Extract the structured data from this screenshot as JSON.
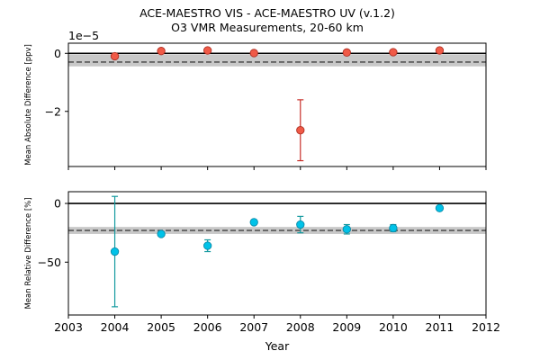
{
  "title_line1": "ACE-MAESTRO VIS - ACE-MAESTRO UV (v.1.2)",
  "title_line2": "O3 VMR Measurements, 20-60 km",
  "chart_data": [
    {
      "type": "scatter",
      "panel": "top",
      "ylabel": "Mean Absolute Difference [ppv]",
      "offset_label": "1e−5",
      "units_scale": 1e-05,
      "xlim": [
        2003,
        2012
      ],
      "ylim": [
        -3.9,
        0.35
      ],
      "yticks": [
        0,
        -2
      ],
      "ytick_labels": [
        "0",
        "−2"
      ],
      "x": [
        2004,
        2005,
        2006,
        2007,
        2008,
        2009,
        2010,
        2011
      ],
      "y": [
        -0.1,
        0.08,
        0.1,
        0.01,
        -2.65,
        0.03,
        0.04,
        0.1
      ],
      "err": [
        0,
        0,
        0,
        0,
        1.05,
        0,
        0,
        0
      ],
      "mean": -0.3,
      "band": [
        -0.45,
        -0.05
      ],
      "zero_line": 0,
      "marker_color": "#f05a47",
      "marker_edge": "#b03024",
      "errbar_color": "#c8302a",
      "mean_line_color": "#555555",
      "band_color": "#c8c8c8"
    },
    {
      "type": "scatter",
      "panel": "bottom",
      "ylabel": "Mean Relative Difference [%]",
      "xlabel": "Year",
      "xlim": [
        2003,
        2012
      ],
      "ylim": [
        -95,
        10
      ],
      "yticks": [
        0,
        -50
      ],
      "ytick_labels": [
        "0",
        "−50"
      ],
      "xticks": [
        2003,
        2004,
        2005,
        2006,
        2007,
        2008,
        2009,
        2010,
        2011,
        2012
      ],
      "xtick_labels": [
        "2003",
        "2004",
        "2005",
        "2006",
        "2007",
        "2008",
        "2009",
        "2010",
        "2011",
        "2012"
      ],
      "x": [
        2004,
        2005,
        2006,
        2007,
        2008,
        2009,
        2010,
        2011
      ],
      "y": [
        -41,
        -26,
        -36,
        -16,
        -18,
        -22,
        -21,
        -4
      ],
      "err": [
        47,
        0,
        5,
        0,
        7,
        4,
        3,
        0
      ],
      "mean": -23,
      "band": [
        -26,
        -20
      ],
      "zero_line": 0,
      "marker_color": "#00c2e8",
      "marker_edge": "#0a8aa8",
      "errbar_color": "#159aa0",
      "mean_line_color": "#555555",
      "band_color": "#c8c8c8"
    }
  ]
}
